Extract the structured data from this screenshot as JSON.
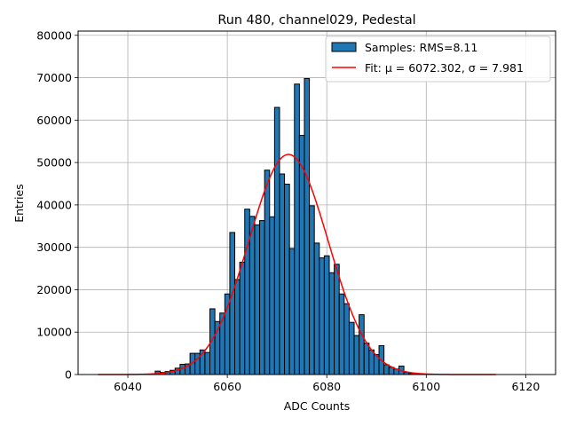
{
  "chart_data": {
    "type": "bar",
    "title": "Run 480, channel029, Pedestal",
    "xlabel": "ADC Counts",
    "ylabel": "Entries",
    "xlim": [
      6030.0,
      6126.0
    ],
    "ylim": [
      0,
      81000
    ],
    "xticks": [
      6040,
      6060,
      6080,
      6100,
      6120
    ],
    "yticks": [
      0,
      10000,
      20000,
      30000,
      40000,
      50000,
      60000,
      70000,
      80000
    ],
    "grid": true,
    "legend_position": "upper right",
    "bin_width": 1,
    "bins": [
      6046,
      6047,
      6048,
      6049,
      6050,
      6051,
      6052,
      6053,
      6054,
      6055,
      6056,
      6057,
      6058,
      6059,
      6060,
      6061,
      6062,
      6063,
      6064,
      6065,
      6066,
      6067,
      6068,
      6069,
      6070,
      6071,
      6072,
      6073,
      6074,
      6075,
      6076,
      6077,
      6078,
      6079,
      6080,
      6081,
      6082,
      6083,
      6084,
      6085,
      6086,
      6087,
      6088,
      6089,
      6090,
      6091,
      6092,
      6093,
      6094,
      6095,
      6096,
      6097,
      6098
    ],
    "series": [
      {
        "name": "Samples: RMS=8.11",
        "kind": "histogram",
        "color": "#1f77b4",
        "edgecolor": "#000000",
        "values": [
          800,
          500,
          700,
          1000,
          1500,
          2400,
          2500,
          5000,
          5000,
          5800,
          5200,
          15500,
          12500,
          14500,
          19000,
          33500,
          22400,
          26500,
          39000,
          37300,
          35300,
          36300,
          48200,
          37200,
          63000,
          47300,
          44900,
          29700,
          68500,
          56400,
          69800,
          39800,
          31000,
          27500,
          28000,
          24000,
          26000,
          19000,
          16700,
          12300,
          9200,
          14100,
          7400,
          5800,
          4700,
          6800,
          2300,
          1700,
          1300,
          2000,
          500,
          200,
          200
        ]
      },
      {
        "name": "Fit: μ = 6072.302, σ = 7.981",
        "kind": "gaussian_fit",
        "color": "#ff0000",
        "mu": 6072.302,
        "sigma": 7.981,
        "amplitude": 51900,
        "x_range": [
          6034.0,
          6114.0
        ]
      }
    ]
  }
}
